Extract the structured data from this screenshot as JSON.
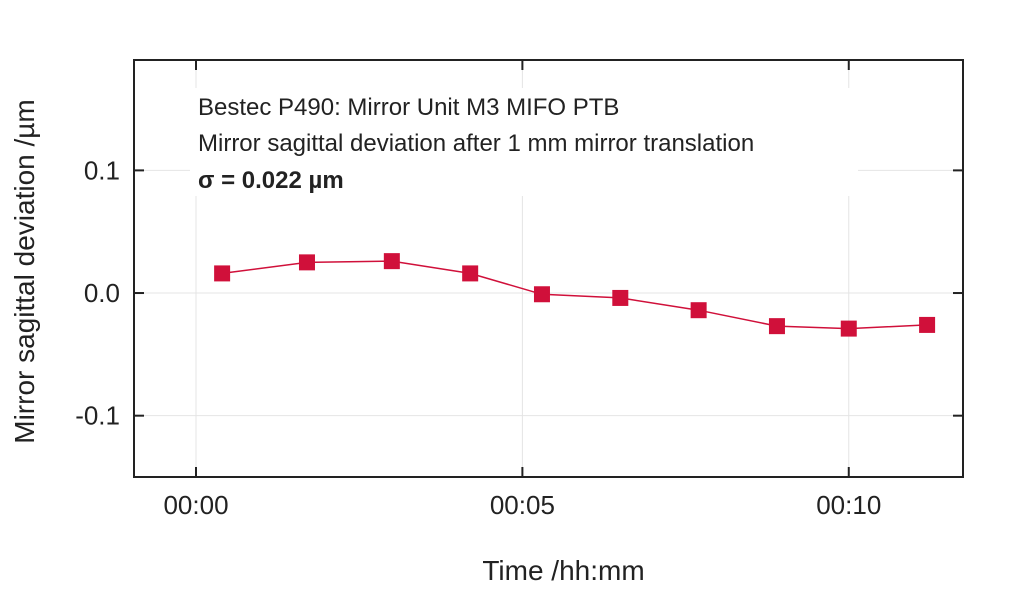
{
  "chart_data": {
    "type": "line",
    "x_format": "hh:mm",
    "annotations": [
      "Bestec P490: Mirror Unit M3 MIFO PTB",
      "Mirror sagittal deviation after 1 mm mirror translation",
      "σ = 0.022 µm"
    ],
    "xlabel": "Time /hh:mm",
    "ylabel": "Mirror sagittal deviation /µm",
    "x_ticks": [
      "00:00",
      "00:05",
      "00:10"
    ],
    "y_ticks": [
      "0.1",
      "0.0",
      "-0.1"
    ],
    "xlim": [
      "23:59.05",
      "00:11.75"
    ],
    "ylim": [
      -0.15,
      0.19
    ],
    "grid": true,
    "series": [
      {
        "color": "#d0103a",
        "marker": "square",
        "x": [
          "00:00.4",
          "00:01.7",
          "00:03.0",
          "00:04.2",
          "00:05.3",
          "00:06.5",
          "00:07.7",
          "00:08.9",
          "00:10.0",
          "00:11.2"
        ],
        "values": [
          0.016,
          0.025,
          0.026,
          0.016,
          -0.001,
          -0.004,
          -0.014,
          -0.027,
          -0.029,
          -0.026
        ]
      }
    ]
  }
}
